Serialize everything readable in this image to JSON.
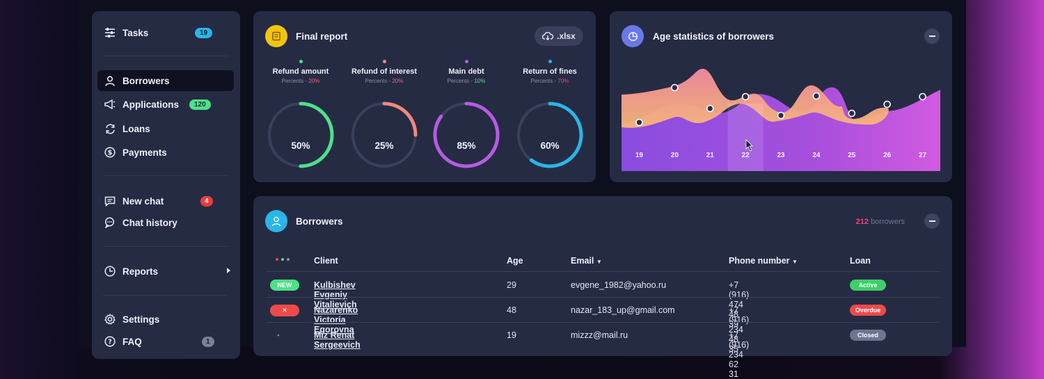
{
  "sidebar": {
    "tasks": {
      "label": "Tasks",
      "badge": "19"
    },
    "borrowers": {
      "label": "Borrowers"
    },
    "applications": {
      "label": "Applications",
      "badge": "120"
    },
    "loans": {
      "label": "Loans"
    },
    "payments": {
      "label": "Payments"
    },
    "new_chat": {
      "label": "New chat",
      "badge": "4"
    },
    "chat_history": {
      "label": "Chat history"
    },
    "reports": {
      "label": "Reports"
    },
    "settings": {
      "label": "Settings"
    },
    "faq": {
      "label": "FAQ",
      "badge": "1"
    }
  },
  "final_report": {
    "title": "Final report",
    "export_label": ".xlsx",
    "metrics": [
      {
        "name": "Refund amount",
        "sub_prefix": "Percents - ",
        "sub_value": "20%",
        "value": "50%",
        "fraction": 0.5,
        "color": "#4ee08a",
        "sub_color": "#e8657a"
      },
      {
        "name": "Refund of interest",
        "sub_prefix": "Percents - ",
        "sub_value": "20%",
        "value": "25%",
        "fraction": 0.25,
        "color": "#f08a7a",
        "sub_color": "#e8657a"
      },
      {
        "name": "Main debt",
        "sub_prefix": "Percents - ",
        "sub_value": "10%",
        "value": "85%",
        "fraction": 0.85,
        "color": "#b45ce0",
        "sub_color": "#4ee08a"
      },
      {
        "name": "Return of fines",
        "sub_prefix": "Percents - ",
        "sub_value": "70%",
        "value": "60%",
        "fraction": 0.6,
        "color": "#29b6e8",
        "sub_color": "#e8457a"
      }
    ]
  },
  "age_stats": {
    "title": "Age statistics of borrowers",
    "chart_data": {
      "type": "area",
      "x": [
        "19",
        "20",
        "21",
        "22",
        "23",
        "24",
        "25",
        "26",
        "27"
      ],
      "highlight": "22"
    }
  },
  "borrowers": {
    "title": "Borrowers",
    "count": "212",
    "count_suffix": " borrowers",
    "columns": {
      "client": "Client",
      "age": "Age",
      "email": "Email",
      "phone": "Phone number",
      "loan": "Loan"
    },
    "rows": [
      {
        "tag": "NEW",
        "tag_color": "#4ee08a",
        "client": "Kulbishev Evgeniy Vitalievich",
        "age": "29",
        "email": "evgene_1982@yahoo.ru",
        "phone": "+7 (916) 474 48 39",
        "loan": "Active",
        "loan_color": "#3fcf6a"
      },
      {
        "tag": "✕",
        "tag_color": "#ee4a4a",
        "client": "Nazarenko Victoria Egorovna",
        "age": "48",
        "email": "nazar_183_up@gmail.com",
        "phone": "+7 (916) 234 48 35",
        "loan": "Overdue",
        "loan_color": "#ee4a4a"
      },
      {
        "tag": "•",
        "tag_color": "transparent",
        "client": "Miz Renat Sergeevich",
        "age": "19",
        "email": "mizzz@mail.ru",
        "phone": "+7 (916) 234 62 31",
        "loan": "Closed",
        "loan_color": "#6e7590"
      }
    ]
  }
}
